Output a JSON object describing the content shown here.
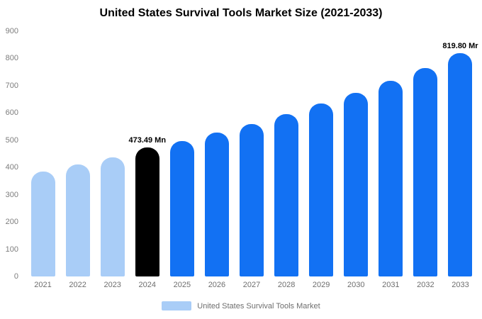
{
  "chart_data": {
    "type": "bar",
    "title": "United States Survival Tools Market Size (2021-2033)",
    "categories": [
      "2021",
      "2022",
      "2023",
      "2024",
      "2025",
      "2026",
      "2027",
      "2028",
      "2029",
      "2030",
      "2031",
      "2032",
      "2033"
    ],
    "values": [
      385,
      410,
      437,
      473.49,
      497,
      527,
      560,
      597,
      635,
      675,
      717,
      765,
      819.8
    ],
    "colors": [
      "#a9cdf7",
      "#a9cdf7",
      "#a9cdf7",
      "#000000",
      "#1271f3",
      "#1271f3",
      "#1271f3",
      "#1271f3",
      "#1271f3",
      "#1271f3",
      "#1271f3",
      "#1271f3",
      "#1271f3"
    ],
    "ylim": [
      0,
      900
    ],
    "ytick_step": 100,
    "grid": false,
    "legend_position": "bottom",
    "annotations": [
      {
        "index": 3,
        "text": "473.49 Mn"
      },
      {
        "index": 12,
        "text": "819.80 Mr"
      }
    ]
  },
  "legend": {
    "label": "United States Survival Tools Market",
    "swatch_color": "#a9cdf7"
  }
}
